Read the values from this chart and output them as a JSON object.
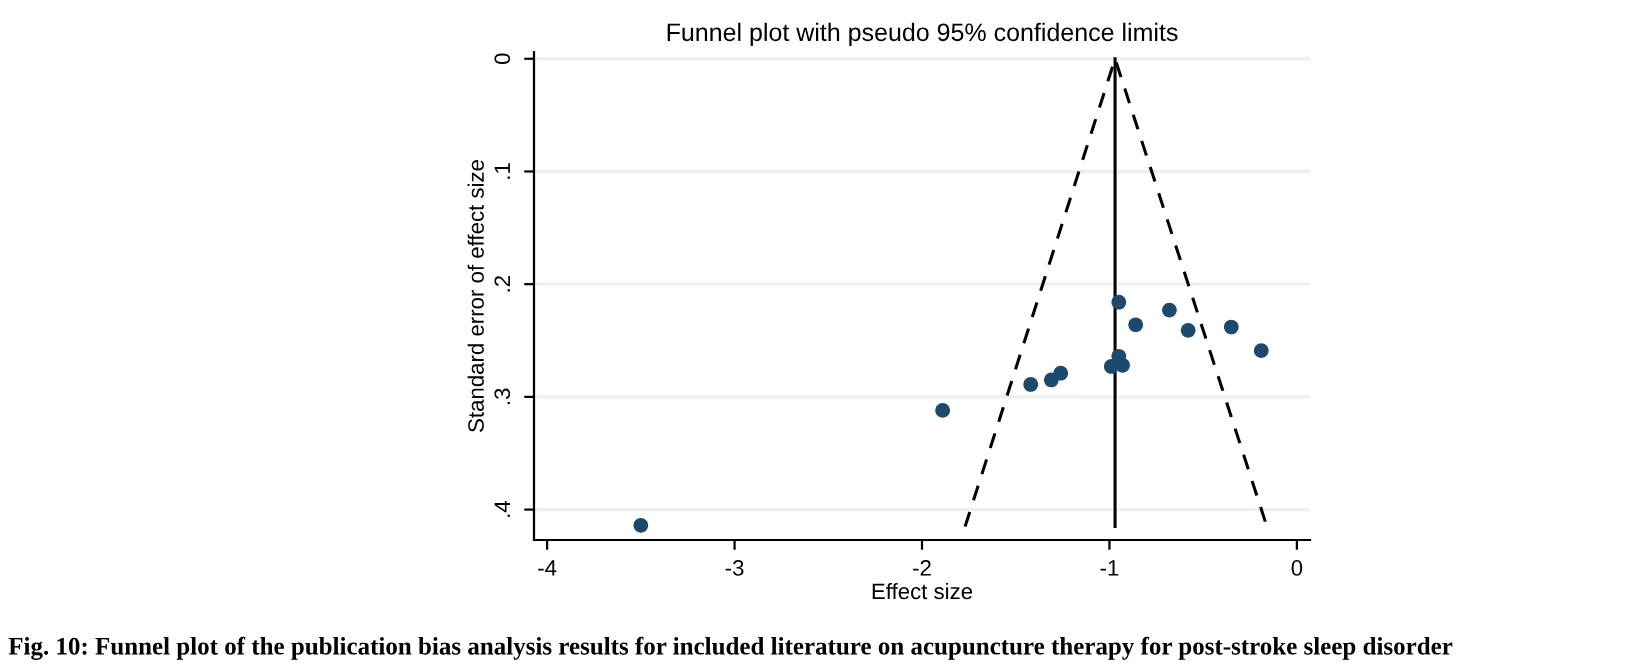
{
  "chart_data": {
    "type": "scatter",
    "title": "Funnel plot with pseudo 95% confidence limits",
    "xlabel": "Effect size",
    "ylabel": "Standard error of effect size",
    "annotations": [
      "Fig. 10: Funnel plot of the publication bias analysis results for included literature on acupuncture therapy for post-stroke sleep disorder"
    ],
    "series": [
      {
        "color": "#1a4a6e",
        "marker": "circle",
        "x": [
          -3.5,
          -1.89,
          -1.42,
          -1.31,
          -1.26,
          -0.99,
          -0.95,
          -0.93,
          -0.95,
          -0.86,
          -0.68,
          -0.58,
          -0.35,
          -0.19
        ],
        "values": [
          0.414,
          0.312,
          0.289,
          0.285,
          0.279,
          0.273,
          0.264,
          0.272,
          0.216,
          0.236,
          0.223,
          0.241,
          0.238,
          0.259
        ]
      },
      {
        "type": "line",
        "color": "#000000",
        "line_style": "dashed",
        "x": [
          -1.77,
          -0.97,
          -0.16
        ],
        "values": [
          0.415,
          0,
          0.415
        ]
      },
      {
        "type": "line",
        "color": "#000000",
        "line_style": "solid",
        "x": [
          -0.97,
          -0.97
        ],
        "values": [
          0,
          0.415
        ]
      }
    ],
    "xlim": [
      -4.07,
      0.07
    ],
    "ylim": [
      0.427,
      -0.006
    ],
    "xticks": [
      -4,
      -3,
      -2,
      -1,
      0
    ],
    "yticks": [
      0,
      {
        "value": 0.1,
        "label": ".1"
      },
      {
        "value": 0.2,
        "label": ".2"
      },
      {
        "value": 0.3,
        "label": ".3"
      },
      {
        "value": 0.4,
        "label": ".4"
      }
    ],
    "grid": "y"
  }
}
